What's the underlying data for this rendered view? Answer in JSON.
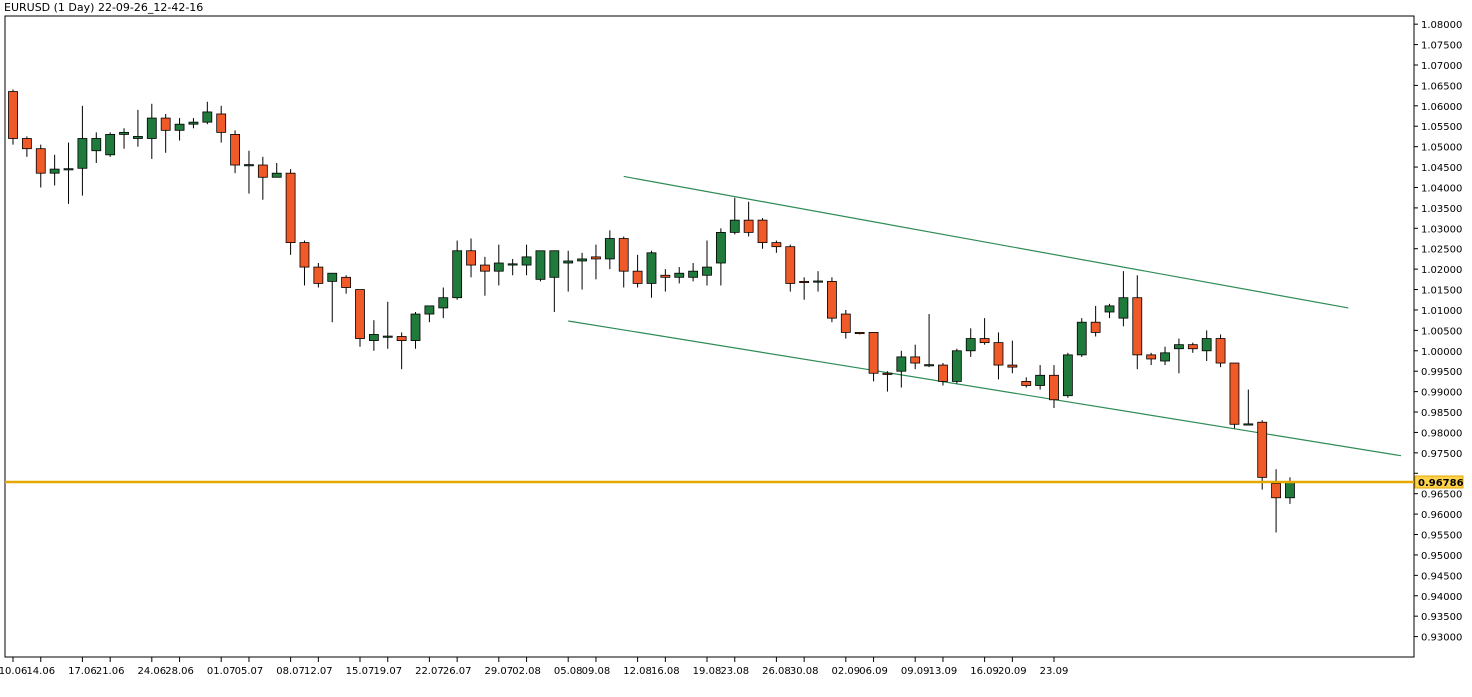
{
  "title": "EURUSD (1 Day) 22-09-26_12-42-16",
  "chart_data": {
    "type": "candlestick",
    "symbol": "EURUSD",
    "timeframe": "1 Day",
    "ylim": [
      0.925,
      1.082
    ],
    "y_ticks": [
      "0.93000",
      "0.93500",
      "0.94000",
      "0.94500",
      "0.95000",
      "0.95500",
      "0.96000",
      "0.96500",
      "0.97000",
      "0.97500",
      "0.98000",
      "0.98500",
      "0.99000",
      "0.99500",
      "1.00000",
      "1.00500",
      "1.01000",
      "1.01500",
      "1.02000",
      "1.02500",
      "1.03000",
      "1.03500",
      "1.04000",
      "1.04500",
      "1.05000",
      "1.05500",
      "1.06000",
      "1.06500",
      "1.07000",
      "1.07500",
      "1.08000"
    ],
    "x_ticks": [
      {
        "label": "10.06",
        "bar": 0
      },
      {
        "label": "14.06",
        "bar": 2
      },
      {
        "label": "17.06",
        "bar": 5
      },
      {
        "label": "21.06",
        "bar": 7
      },
      {
        "label": "24.06",
        "bar": 10
      },
      {
        "label": "28.06",
        "bar": 12
      },
      {
        "label": "01.07",
        "bar": 15
      },
      {
        "label": "05.07",
        "bar": 17
      },
      {
        "label": "08.07",
        "bar": 20
      },
      {
        "label": "12.07",
        "bar": 22
      },
      {
        "label": "15.07",
        "bar": 25
      },
      {
        "label": "19.07",
        "bar": 27
      },
      {
        "label": "22.07",
        "bar": 30
      },
      {
        "label": "26.07",
        "bar": 32
      },
      {
        "label": "29.07",
        "bar": 35
      },
      {
        "label": "02.08",
        "bar": 37
      },
      {
        "label": "05.08",
        "bar": 40
      },
      {
        "label": "09.08",
        "bar": 42
      },
      {
        "label": "12.08",
        "bar": 45
      },
      {
        "label": "16.08",
        "bar": 47
      },
      {
        "label": "19.08",
        "bar": 50
      },
      {
        "label": "23.08",
        "bar": 52
      },
      {
        "label": "26.08",
        "bar": 55
      },
      {
        "label": "30.08",
        "bar": 57
      },
      {
        "label": "02.09",
        "bar": 60
      },
      {
        "label": "06.09",
        "bar": 62
      },
      {
        "label": "09.09",
        "bar": 65
      },
      {
        "label": "13.09",
        "bar": 67
      },
      {
        "label": "16.09",
        "bar": 70
      },
      {
        "label": "20.09",
        "bar": 72
      },
      {
        "label": "23.09",
        "bar": 75
      }
    ],
    "candles": [
      {
        "o": 1.0635,
        "h": 1.064,
        "l": 1.0505,
        "c": 1.052
      },
      {
        "o": 1.052,
        "h": 1.0525,
        "l": 1.0475,
        "c": 1.0495
      },
      {
        "o": 1.0495,
        "h": 1.0505,
        "l": 1.04,
        "c": 1.0435
      },
      {
        "o": 1.0435,
        "h": 1.048,
        "l": 1.0405,
        "c": 1.0445
      },
      {
        "o": 1.0445,
        "h": 1.051,
        "l": 1.036,
        "c": 1.0446
      },
      {
        "o": 1.0447,
        "h": 1.06,
        "l": 1.038,
        "c": 1.052
      },
      {
        "o": 1.049,
        "h": 1.0535,
        "l": 1.046,
        "c": 1.052
      },
      {
        "o": 1.048,
        "h": 1.0535,
        "l": 1.0475,
        "c": 1.053
      },
      {
        "o": 1.053,
        "h": 1.0545,
        "l": 1.0495,
        "c": 1.0535
      },
      {
        "o": 1.052,
        "h": 1.059,
        "l": 1.05,
        "c": 1.0525
      },
      {
        "o": 1.052,
        "h": 1.0605,
        "l": 1.047,
        "c": 1.057
      },
      {
        "o": 1.057,
        "h": 1.058,
        "l": 1.0485,
        "c": 1.054
      },
      {
        "o": 1.054,
        "h": 1.057,
        "l": 1.0515,
        "c": 1.0555
      },
      {
        "o": 1.0555,
        "h": 1.057,
        "l": 1.0545,
        "c": 1.056
      },
      {
        "o": 1.056,
        "h": 1.061,
        "l": 1.0555,
        "c": 1.0585
      },
      {
        "o": 1.058,
        "h": 1.06,
        "l": 1.051,
        "c": 1.0535
      },
      {
        "o": 1.053,
        "h": 1.054,
        "l": 1.0435,
        "c": 1.0455
      },
      {
        "o": 1.0455,
        "h": 1.049,
        "l": 1.0385,
        "c": 1.0456
      },
      {
        "o": 1.0455,
        "h": 1.0475,
        "l": 1.037,
        "c": 1.0425
      },
      {
        "o": 1.0425,
        "h": 1.046,
        "l": 1.0425,
        "c": 1.0435
      },
      {
        "o": 1.0435,
        "h": 1.0445,
        "l": 1.0235,
        "c": 1.0265
      },
      {
        "o": 1.0265,
        "h": 1.027,
        "l": 1.016,
        "c": 1.0205
      },
      {
        "o": 1.0205,
        "h": 1.0215,
        "l": 1.0155,
        "c": 1.0165
      },
      {
        "o": 1.017,
        "h": 1.0185,
        "l": 1.007,
        "c": 1.019
      },
      {
        "o": 1.018,
        "h": 1.0185,
        "l": 1.014,
        "c": 1.0155
      },
      {
        "o": 1.015,
        "h": 1.015,
        "l": 1.001,
        "c": 1.003
      },
      {
        "o": 1.0025,
        "h": 1.0075,
        "l": 1.0,
        "c": 1.004
      },
      {
        "o": 1.0035,
        "h": 1.012,
        "l": 1.0005,
        "c": 1.0036
      },
      {
        "o": 1.0035,
        "h": 1.0045,
        "l": 0.9955,
        "c": 1.0025
      },
      {
        "o": 1.0025,
        "h": 1.0095,
        "l": 1.0005,
        "c": 1.009
      },
      {
        "o": 1.009,
        "h": 1.0105,
        "l": 1.007,
        "c": 1.011
      },
      {
        "o": 1.0105,
        "h": 1.0155,
        "l": 1.008,
        "c": 1.013
      },
      {
        "o": 1.013,
        "h": 1.027,
        "l": 1.0125,
        "c": 1.0245
      },
      {
        "o": 1.0245,
        "h": 1.0275,
        "l": 1.018,
        "c": 1.021
      },
      {
        "o": 1.021,
        "h": 1.023,
        "l": 1.0135,
        "c": 1.0195
      },
      {
        "o": 1.0195,
        "h": 1.026,
        "l": 1.016,
        "c": 1.0215
      },
      {
        "o": 1.021,
        "h": 1.0225,
        "l": 1.0185,
        "c": 1.0213
      },
      {
        "o": 1.021,
        "h": 1.026,
        "l": 1.0185,
        "c": 1.023
      },
      {
        "o": 1.0175,
        "h": 1.0245,
        "l": 1.017,
        "c": 1.0245
      },
      {
        "o": 1.018,
        "h": 1.0245,
        "l": 1.0095,
        "c": 1.0245
      },
      {
        "o": 1.0215,
        "h": 1.0245,
        "l": 1.0145,
        "c": 1.022
      },
      {
        "o": 1.022,
        "h": 1.024,
        "l": 1.015,
        "c": 1.0225
      },
      {
        "o": 1.023,
        "h": 1.026,
        "l": 1.0175,
        "c": 1.0225
      },
      {
        "o": 1.0225,
        "h": 1.0295,
        "l": 1.02,
        "c": 1.0275
      },
      {
        "o": 1.0275,
        "h": 1.028,
        "l": 1.0155,
        "c": 1.0195
      },
      {
        "o": 1.0195,
        "h": 1.0235,
        "l": 1.0155,
        "c": 1.0165
      },
      {
        "o": 1.0165,
        "h": 1.0245,
        "l": 1.013,
        "c": 1.024
      },
      {
        "o": 1.0185,
        "h": 1.02,
        "l": 1.0145,
        "c": 1.018
      },
      {
        "o": 1.018,
        "h": 1.0205,
        "l": 1.0165,
        "c": 1.019
      },
      {
        "o": 1.018,
        "h": 1.0215,
        "l": 1.017,
        "c": 1.0195
      },
      {
        "o": 1.0185,
        "h": 1.027,
        "l": 1.016,
        "c": 1.0205
      },
      {
        "o": 1.0215,
        "h": 1.03,
        "l": 1.016,
        "c": 1.029
      },
      {
        "o": 1.029,
        "h": 1.0375,
        "l": 1.0285,
        "c": 1.032
      },
      {
        "o": 1.032,
        "h": 1.0365,
        "l": 1.028,
        "c": 1.029
      },
      {
        "o": 1.032,
        "h": 1.0325,
        "l": 1.025,
        "c": 1.0265
      },
      {
        "o": 1.0265,
        "h": 1.027,
        "l": 1.024,
        "c": 1.0255
      },
      {
        "o": 1.0255,
        "h": 1.026,
        "l": 1.0145,
        "c": 1.0165
      },
      {
        "o": 1.017,
        "h": 1.018,
        "l": 1.0125,
        "c": 1.0169
      },
      {
        "o": 1.017,
        "h": 1.0195,
        "l": 1.0145,
        "c": 1.0171
      },
      {
        "o": 1.017,
        "h": 1.018,
        "l": 1.007,
        "c": 1.008
      },
      {
        "o": 1.009,
        "h": 1.01,
        "l": 1.003,
        "c": 1.0045
      },
      {
        "o": 1.0045,
        "h": 1.0045,
        "l": 1.004,
        "c": 1.0044
      },
      {
        "o": 1.0045,
        "h": 1.0045,
        "l": 0.9925,
        "c": 0.9945
      },
      {
        "o": 0.9945,
        "h": 0.995,
        "l": 0.99,
        "c": 0.9944
      },
      {
        "o": 0.995,
        "h": 1.0,
        "l": 0.991,
        "c": 0.9985
      },
      {
        "o": 0.9985,
        "h": 1.0015,
        "l": 0.9955,
        "c": 0.997
      },
      {
        "o": 0.9965,
        "h": 1.009,
        "l": 0.996,
        "c": 0.9966
      },
      {
        "o": 0.9965,
        "h": 0.997,
        "l": 0.9915,
        "c": 0.9925
      },
      {
        "o": 0.9925,
        "h": 1.0005,
        "l": 0.992,
        "c": 1.0
      },
      {
        "o": 1.0,
        "h": 1.0055,
        "l": 0.9985,
        "c": 1.003
      },
      {
        "o": 1.003,
        "h": 1.008,
        "l": 1.0015,
        "c": 1.002
      },
      {
        "o": 1.002,
        "h": 1.0045,
        "l": 0.993,
        "c": 0.9965
      },
      {
        "o": 0.9965,
        "h": 1.0025,
        "l": 0.9945,
        "c": 0.996
      },
      {
        "o": 0.9925,
        "h": 0.9935,
        "l": 0.991,
        "c": 0.9915
      },
      {
        "o": 0.9915,
        "h": 0.9965,
        "l": 0.9905,
        "c": 0.994
      },
      {
        "o": 0.994,
        "h": 0.9965,
        "l": 0.986,
        "c": 0.988
      },
      {
        "o": 0.989,
        "h": 0.9995,
        "l": 0.9885,
        "c": 0.999
      },
      {
        "o": 0.999,
        "h": 1.008,
        "l": 0.9985,
        "c": 1.007
      },
      {
        "o": 1.007,
        "h": 1.011,
        "l": 1.0035,
        "c": 1.0045
      },
      {
        "o": 1.0095,
        "h": 1.0115,
        "l": 1.008,
        "c": 1.011
      },
      {
        "o": 1.008,
        "h": 1.0195,
        "l": 1.006,
        "c": 1.013
      },
      {
        "o": 1.013,
        "h": 1.0185,
        "l": 0.9955,
        "c": 0.999
      },
      {
        "o": 0.999,
        "h": 0.9995,
        "l": 0.9965,
        "c": 0.998
      },
      {
        "o": 0.9975,
        "h": 1.001,
        "l": 0.9965,
        "c": 0.9995
      },
      {
        "o": 1.0005,
        "h": 1.003,
        "l": 0.9945,
        "c": 1.0015
      },
      {
        "o": 1.0015,
        "h": 1.002,
        "l": 0.9995,
        "c": 1.0005
      },
      {
        "o": 1.0,
        "h": 1.005,
        "l": 0.9975,
        "c": 1.003
      },
      {
        "o": 1.003,
        "h": 1.004,
        "l": 0.996,
        "c": 0.997
      },
      {
        "o": 0.997,
        "h": 0.997,
        "l": 0.981,
        "c": 0.982
      },
      {
        "o": 0.982,
        "h": 0.9905,
        "l": 0.982,
        "c": 0.9821
      },
      {
        "o": 0.9825,
        "h": 0.983,
        "l": 0.966,
        "c": 0.969
      },
      {
        "o": 0.9675,
        "h": 0.971,
        "l": 0.9555,
        "c": 0.964
      },
      {
        "o": 0.964,
        "h": 0.969,
        "l": 0.9625,
        "c": 0.9678
      }
    ],
    "trendlines": [
      {
        "color": "#2e8b57",
        "from": {
          "bar": 44.0,
          "price": 1.0427
        },
        "to": {
          "bar": 96.2,
          "price": 1.0105
        }
      },
      {
        "color": "#2e8b57",
        "from": {
          "bar": 40.0,
          "price": 1.0073
        },
        "to": {
          "bar": 100.0,
          "price": 0.9743
        }
      }
    ],
    "current_price": {
      "value": 0.96786,
      "label": "0.96786",
      "color": "#e6a800"
    },
    "colors": {
      "bull": "#1f7a3c",
      "bear": "#f05a28",
      "wick": "#000000",
      "grid": "#000000"
    }
  }
}
